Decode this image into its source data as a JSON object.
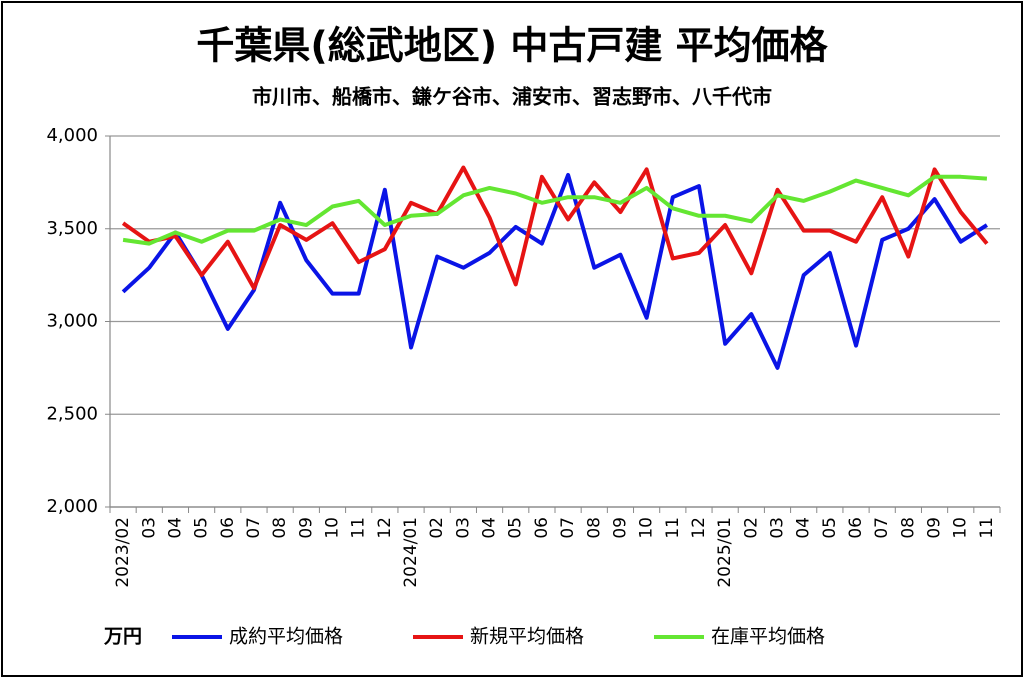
{
  "chart_data": {
    "type": "line",
    "title": "千葉県(総武地区) 中古戸建 平均価格",
    "subtitle": "市川市、船橋市、鎌ケ谷市、浦安市、習志野市、八千代市",
    "y_unit": "万円",
    "categories": [
      "2023/02",
      "03",
      "04",
      "05",
      "06",
      "07",
      "08",
      "09",
      "10",
      "11",
      "12",
      "2024/01",
      "02",
      "03",
      "04",
      "05",
      "06",
      "07",
      "08",
      "09",
      "10",
      "11",
      "12",
      "2025/01",
      "02",
      "03",
      "04",
      "05",
      "06",
      "07",
      "08",
      "09",
      "10",
      "11"
    ],
    "series": [
      {
        "name": "成約平均価格",
        "color": "#0a14e6",
        "values": [
          3160,
          3290,
          3480,
          3250,
          2960,
          3170,
          3640,
          3330,
          3150,
          3150,
          3710,
          2860,
          3350,
          3290,
          3370,
          3510,
          3420,
          3790,
          3290,
          3360,
          3020,
          3670,
          3730,
          2880,
          3040,
          2750,
          3250,
          3370,
          2870,
          3440,
          3500,
          3660,
          3430,
          3520
        ]
      },
      {
        "name": "新規平均価格",
        "color": "#e61414",
        "values": [
          3530,
          3430,
          3460,
          3250,
          3430,
          3180,
          3520,
          3440,
          3530,
          3320,
          3390,
          3640,
          3580,
          3830,
          3560,
          3200,
          3780,
          3550,
          3750,
          3590,
          3820,
          3340,
          3370,
          3520,
          3260,
          3710,
          3490,
          3490,
          3430,
          3670,
          3350,
          3820,
          3590,
          3420
        ]
      },
      {
        "name": "在庫平均価格",
        "color": "#64e632",
        "values": [
          3440,
          3420,
          3480,
          3430,
          3490,
          3490,
          3550,
          3520,
          3620,
          3650,
          3520,
          3570,
          3580,
          3680,
          3720,
          3690,
          3640,
          3670,
          3670,
          3640,
          3720,
          3610,
          3570,
          3570,
          3540,
          3680,
          3650,
          3700,
          3760,
          3720,
          3680,
          3780,
          3780,
          3770
        ]
      }
    ],
    "ylim": [
      2000,
      4000
    ],
    "yticks": [
      {
        "value": 2000,
        "label": "2,000"
      },
      {
        "value": 2500,
        "label": "2,500"
      },
      {
        "value": 3000,
        "label": "3,000"
      },
      {
        "value": 3500,
        "label": "3,500"
      },
      {
        "value": 4000,
        "label": "4,000"
      }
    ],
    "grid": true
  }
}
